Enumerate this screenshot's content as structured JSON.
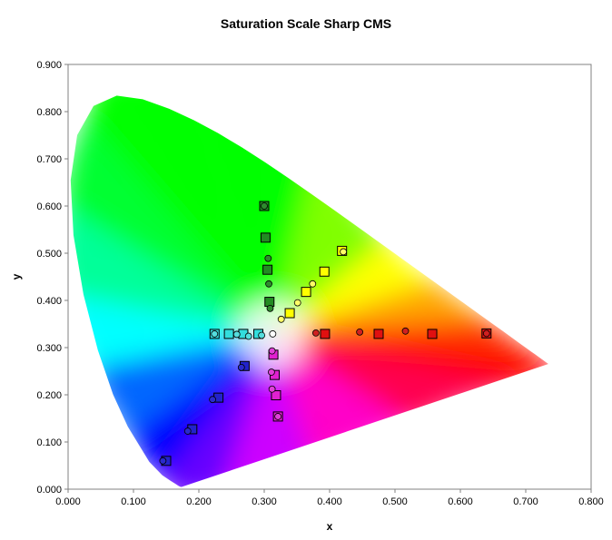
{
  "chart_data": {
    "type": "scatter",
    "title": "Saturation Scale Sharp CMS",
    "xlabel": "x",
    "ylabel": "y",
    "xlim": [
      0,
      0.8
    ],
    "ylim": [
      0,
      0.9
    ],
    "x_ticks": [
      "0.000",
      "0.100",
      "0.200",
      "0.300",
      "0.400",
      "0.500",
      "0.600",
      "0.700",
      "0.800"
    ],
    "y_ticks": [
      "0.000",
      "0.100",
      "0.200",
      "0.300",
      "0.400",
      "0.500",
      "0.600",
      "0.700",
      "0.800",
      "0.900"
    ],
    "grid": false,
    "legend": false,
    "background": "CIE 1931 chromaticity diagram",
    "white_point": [
      0.3127,
      0.329
    ],
    "series": [
      {
        "color": "#e01010",
        "marker": "square",
        "points": [
          [
            0.393,
            0.329
          ],
          [
            0.475,
            0.329
          ],
          [
            0.557,
            0.329
          ],
          [
            0.64,
            0.33
          ]
        ]
      },
      {
        "color": "#d02020",
        "marker": "circle",
        "points": [
          [
            0.379,
            0.331
          ],
          [
            0.446,
            0.333
          ],
          [
            0.516,
            0.335
          ],
          [
            0.64,
            0.33
          ]
        ]
      },
      {
        "color": "#228b22",
        "marker": "square",
        "points": [
          [
            0.308,
            0.397
          ],
          [
            0.305,
            0.465
          ],
          [
            0.302,
            0.533
          ],
          [
            0.3,
            0.6
          ]
        ]
      },
      {
        "color": "#2e8b2e",
        "marker": "circle",
        "points": [
          [
            0.309,
            0.383
          ],
          [
            0.307,
            0.435
          ],
          [
            0.306,
            0.489
          ],
          [
            0.3,
            0.6
          ]
        ]
      },
      {
        "color": "#2222cc",
        "marker": "square",
        "points": [
          [
            0.27,
            0.261
          ],
          [
            0.23,
            0.194
          ],
          [
            0.19,
            0.127
          ],
          [
            0.15,
            0.06
          ]
        ]
      },
      {
        "color": "#2a2acc",
        "marker": "circle",
        "points": [
          [
            0.265,
            0.258
          ],
          [
            0.221,
            0.19
          ],
          [
            0.183,
            0.123
          ],
          [
            0.145,
            0.06
          ]
        ]
      },
      {
        "color": "#ffff00",
        "marker": "square",
        "points": [
          [
            0.339,
            0.373
          ],
          [
            0.364,
            0.418
          ],
          [
            0.392,
            0.461
          ],
          [
            0.419,
            0.505
          ]
        ]
      },
      {
        "color": "#ffff66",
        "marker": "circle",
        "points": [
          [
            0.326,
            0.36
          ],
          [
            0.351,
            0.395
          ],
          [
            0.374,
            0.435
          ],
          [
            0.421,
            0.503
          ]
        ]
      },
      {
        "color": "#33dddd",
        "marker": "square",
        "points": [
          [
            0.291,
            0.329
          ],
          [
            0.268,
            0.329
          ],
          [
            0.246,
            0.329
          ],
          [
            0.224,
            0.329
          ]
        ]
      },
      {
        "color": "#55dddd",
        "marker": "circle",
        "points": [
          [
            0.296,
            0.326
          ],
          [
            0.276,
            0.324
          ],
          [
            0.258,
            0.328
          ],
          [
            0.224,
            0.329
          ]
        ]
      },
      {
        "color": "#e020d0",
        "marker": "square",
        "points": [
          [
            0.314,
            0.285
          ],
          [
            0.316,
            0.242
          ],
          [
            0.318,
            0.199
          ],
          [
            0.321,
            0.154
          ]
        ]
      },
      {
        "color": "#e040d8",
        "marker": "circle",
        "points": [
          [
            0.312,
            0.293
          ],
          [
            0.311,
            0.248
          ],
          [
            0.312,
            0.212
          ],
          [
            0.321,
            0.154
          ]
        ]
      },
      {
        "color": "#ffffff",
        "marker": "circle",
        "points": [
          [
            0.313,
            0.329
          ]
        ]
      }
    ]
  }
}
